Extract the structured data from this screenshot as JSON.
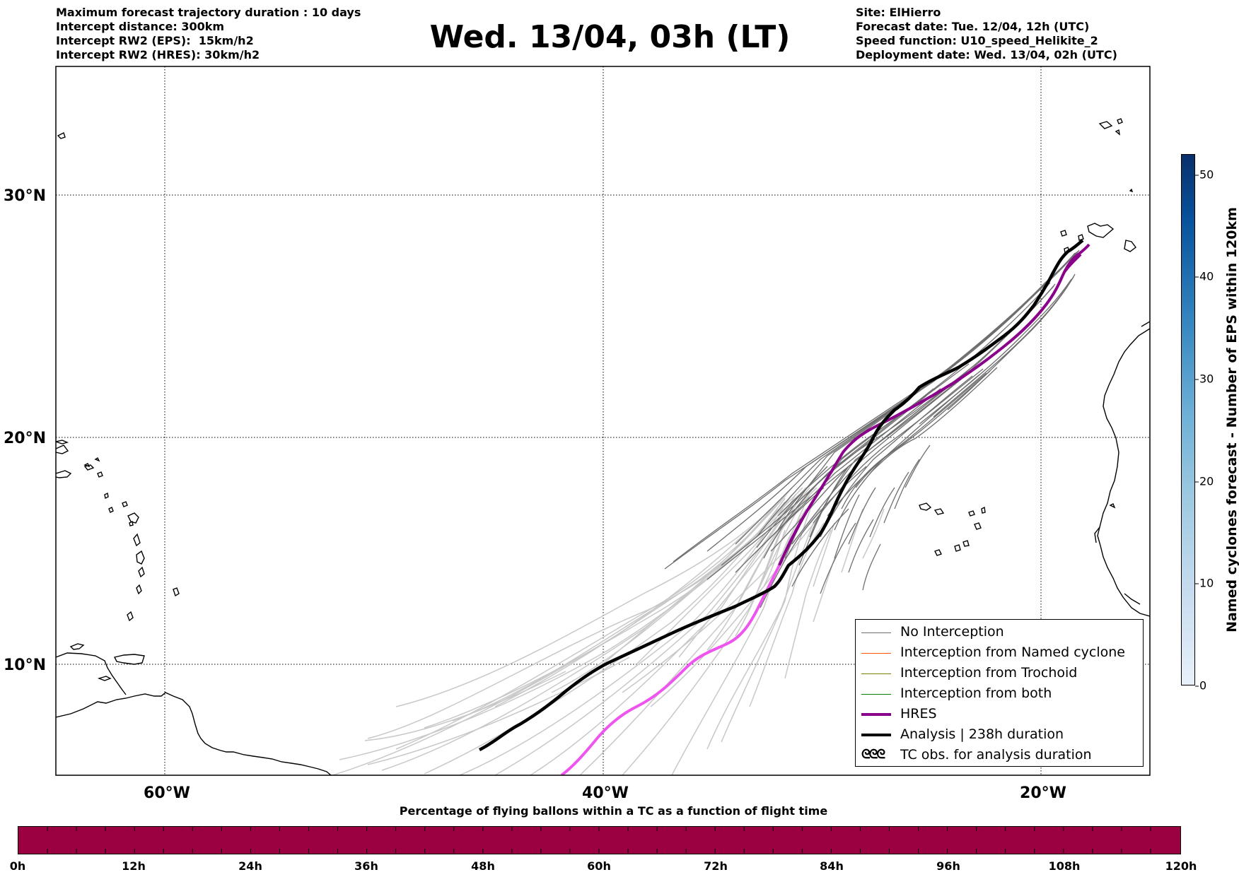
{
  "header_left": [
    "Maximum forecast trajectory duration : 10 days",
    "Intercept distance: 300km",
    "Intercept RW2 (EPS):  15km/h2",
    "Intercept RW2 (HRES): 30km/h2"
  ],
  "header_right": [
    "Site: ElHierro",
    "Forecast date: Tue. 12/04, 12h (UTC)",
    "Speed function: U10_speed_Helikite_2",
    "Deployment date: Wed. 13/04, 02h (UTC)"
  ],
  "title": "Wed. 13/04, 03h (LT)",
  "map": {
    "lat_labels": [
      "30°N",
      "20°N",
      "10°N"
    ],
    "lon_labels": [
      "60°W",
      "40°W",
      "20°W"
    ],
    "grid": "dotted",
    "colors": {
      "no_interception": "#6e6e6e",
      "no_interception_light": "#c8c8c8",
      "named_cyclone": "#ff5500",
      "trochoid": "#808000",
      "both": "#008000",
      "hres": "#8b008b",
      "hres_late": "#ee55ee",
      "analysis": "#000000"
    }
  },
  "legend": {
    "items": [
      {
        "label": "No Interception",
        "color": "#6e6e6e",
        "style": "thin"
      },
      {
        "label": "Interception from Named cyclone",
        "color": "#ff5500",
        "style": "thin"
      },
      {
        "label": "Interception from Trochoid",
        "color": "#808000",
        "style": "thin"
      },
      {
        "label": "Interception from both",
        "color": "#008000",
        "style": "thin"
      },
      {
        "label": "HRES",
        "color": "#8b008b",
        "style": "thick"
      },
      {
        "label": "Analysis | 238h duration",
        "color": "#000000",
        "style": "thick"
      },
      {
        "label": "TC obs. for analysis duration",
        "color": "#000000",
        "style": "symbol",
        "symbol": "ᘓᘓᘓ"
      }
    ]
  },
  "colorbar": {
    "label": "Named cyclones forecast - Number of EPS within 120km",
    "ticks": [
      "0",
      "10",
      "20",
      "30",
      "40",
      "50"
    ],
    "max": 52
  },
  "flight_time_bar": {
    "label": "Percentage of flying ballons within a TC as a function of flight time",
    "color": "#9b0040",
    "ticks": [
      "0h",
      "12h",
      "24h",
      "36h",
      "48h",
      "60h",
      "72h",
      "84h",
      "96h",
      "108h",
      "120h"
    ]
  }
}
